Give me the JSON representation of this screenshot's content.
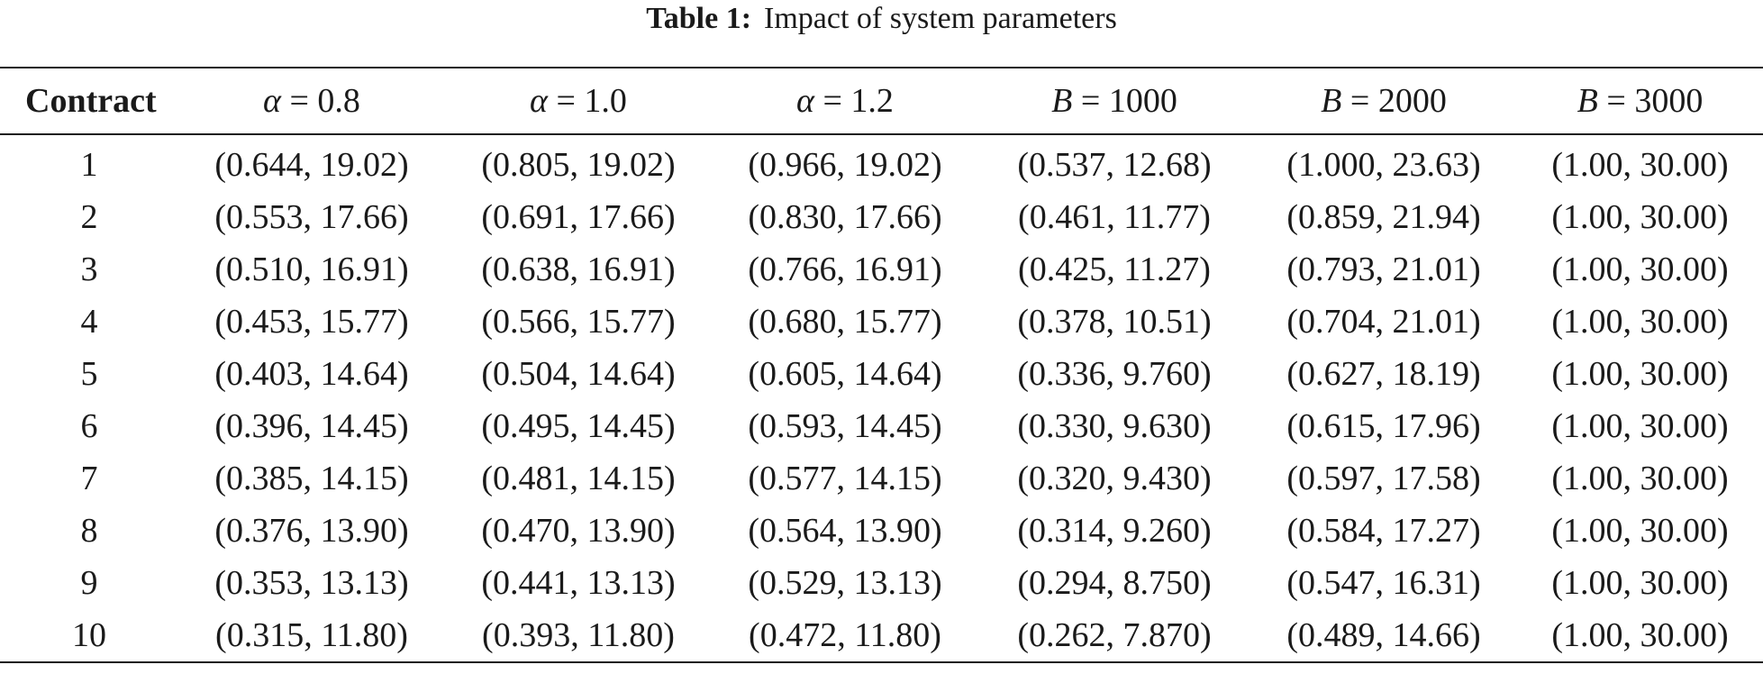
{
  "caption": {
    "label": "Table 1:",
    "text": "Impact of system parameters"
  },
  "table": {
    "headers": [
      {
        "text": "Contract"
      },
      {
        "symbol": "α",
        "rest": " = 0.8"
      },
      {
        "symbol": "α",
        "rest": " = 1.0"
      },
      {
        "symbol": "α",
        "rest": " = 1.2"
      },
      {
        "symbol": "B",
        "rest": " = 1000"
      },
      {
        "symbol": "B",
        "rest": " = 2000"
      },
      {
        "symbol": "B",
        "rest": " = 3000"
      }
    ],
    "rows": [
      [
        "1",
        "(0.644, 19.02)",
        "(0.805, 19.02)",
        "(0.966, 19.02)",
        "(0.537, 12.68)",
        "(1.000, 23.63)",
        "(1.00, 30.00)"
      ],
      [
        "2",
        "(0.553, 17.66)",
        "(0.691, 17.66)",
        "(0.830, 17.66)",
        "(0.461, 11.77)",
        "(0.859, 21.94)",
        "(1.00, 30.00)"
      ],
      [
        "3",
        "(0.510, 16.91)",
        "(0.638, 16.91)",
        "(0.766, 16.91)",
        "(0.425, 11.27)",
        "(0.793, 21.01)",
        "(1.00, 30.00)"
      ],
      [
        "4",
        "(0.453, 15.77)",
        "(0.566, 15.77)",
        "(0.680, 15.77)",
        "(0.378, 10.51)",
        "(0.704, 21.01)",
        "(1.00, 30.00)"
      ],
      [
        "5",
        "(0.403, 14.64)",
        "(0.504, 14.64)",
        "(0.605, 14.64)",
        "(0.336, 9.760)",
        "(0.627, 18.19)",
        "(1.00, 30.00)"
      ],
      [
        "6",
        "(0.396, 14.45)",
        "(0.495, 14.45)",
        "(0.593, 14.45)",
        "(0.330, 9.630)",
        "(0.615, 17.96)",
        "(1.00, 30.00)"
      ],
      [
        "7",
        "(0.385, 14.15)",
        "(0.481, 14.15)",
        "(0.577, 14.15)",
        "(0.320, 9.430)",
        "(0.597, 17.58)",
        "(1.00, 30.00)"
      ],
      [
        "8",
        "(0.376, 13.90)",
        "(0.470, 13.90)",
        "(0.564, 13.90)",
        "(0.314, 9.260)",
        "(0.584, 17.27)",
        "(1.00, 30.00)"
      ],
      [
        "9",
        "(0.353, 13.13)",
        "(0.441, 13.13)",
        "(0.529, 13.13)",
        "(0.294, 8.750)",
        "(0.547, 16.31)",
        "(1.00, 30.00)"
      ],
      [
        "10",
        "(0.315, 11.80)",
        "(0.393, 11.80)",
        "(0.472, 11.80)",
        "(0.262, 7.870)",
        "(0.489, 14.66)",
        "(1.00, 30.00)"
      ]
    ]
  }
}
